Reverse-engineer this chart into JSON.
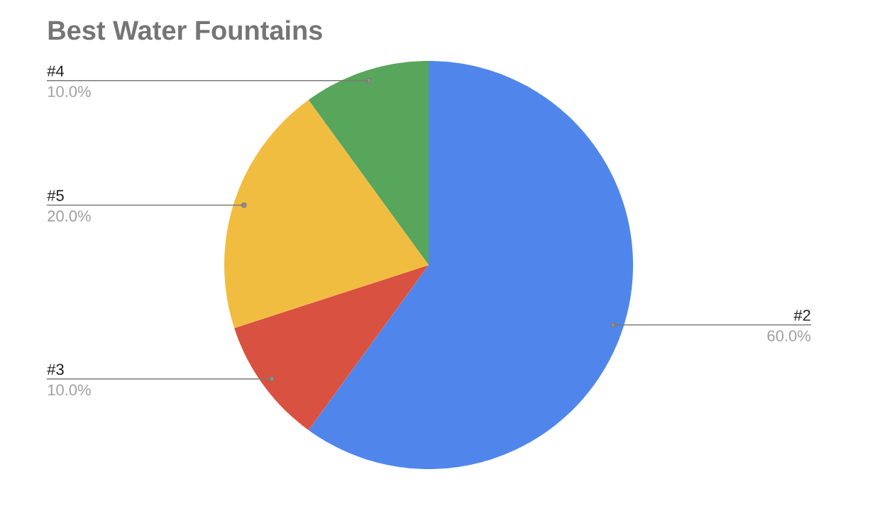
{
  "chart_data": {
    "type": "pie",
    "title": "Best Water Fountains",
    "categories": [
      "#2",
      "#3",
      "#5",
      "#4"
    ],
    "values": [
      60,
      10,
      20,
      10
    ],
    "colors": [
      "#5086ec",
      "#d95140",
      "#f1bd41",
      "#58a55c"
    ],
    "value_labels": [
      "60.0%",
      "10.0%",
      "20.0%",
      "10.0%"
    ]
  }
}
